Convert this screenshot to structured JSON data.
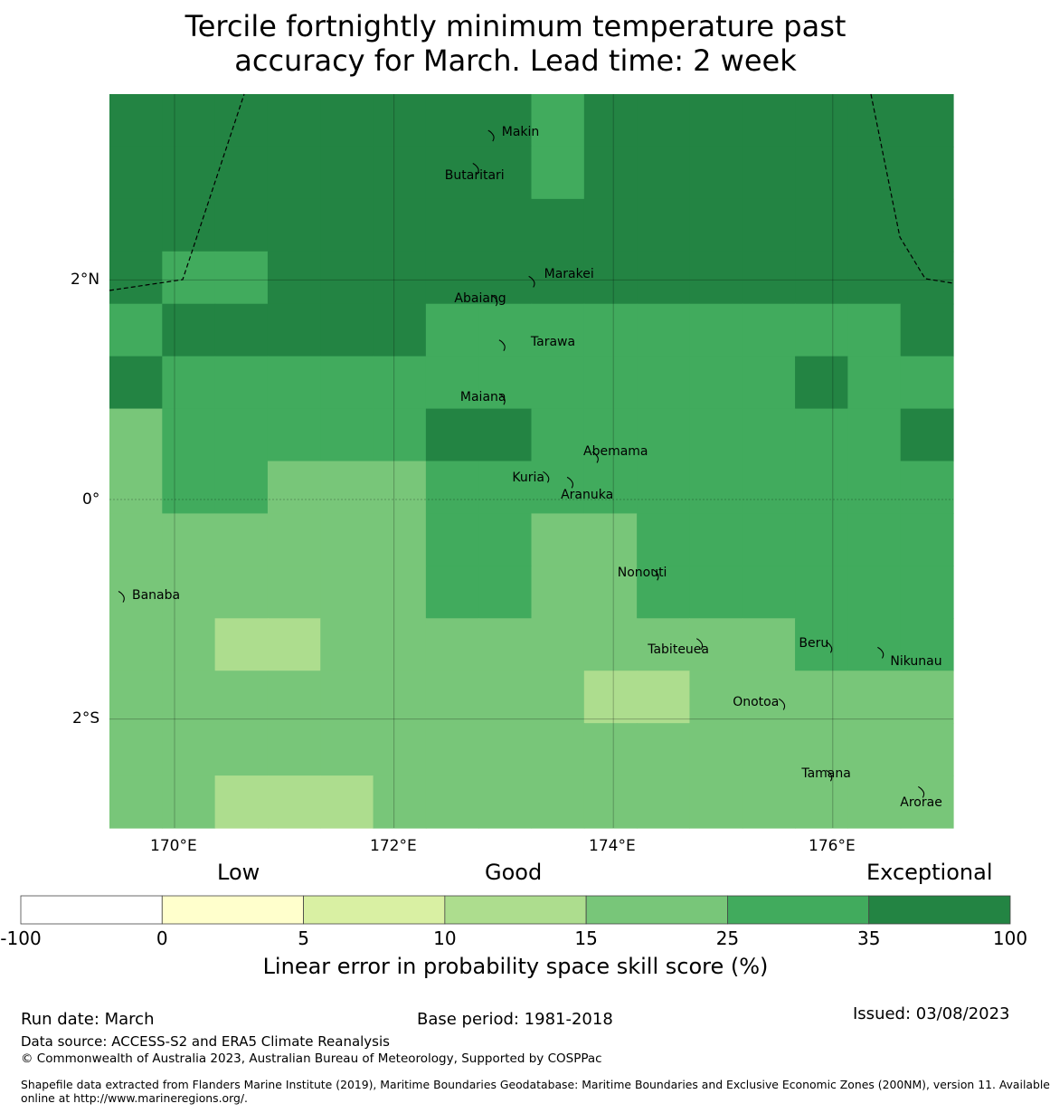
{
  "title_line1": "Tercile fortnightly minimum temperature past",
  "title_line2": "accuracy for March. Lead time: 2 week",
  "map": {
    "lon_labels": [
      "170°E",
      "172°E",
      "174°E",
      "176°E"
    ],
    "lat_labels": [
      "2°N",
      "0°",
      "2°S"
    ],
    "palette": [
      "#ffffff",
      "#ffffcc",
      "#d9f0a3",
      "#addd8e",
      "#78c679",
      "#41ab5d",
      "#238443"
    ],
    "grid": [
      [
        6,
        6,
        6,
        6,
        6,
        6,
        6,
        6,
        5,
        6,
        6,
        6,
        6,
        6,
        6,
        6
      ],
      [
        6,
        6,
        6,
        6,
        6,
        6,
        6,
        6,
        5,
        6,
        6,
        6,
        6,
        6,
        6,
        6
      ],
      [
        6,
        6,
        6,
        6,
        6,
        6,
        6,
        6,
        6,
        6,
        6,
        6,
        6,
        6,
        6,
        6
      ],
      [
        6,
        5,
        5,
        6,
        6,
        6,
        6,
        6,
        6,
        6,
        6,
        6,
        6,
        6,
        6,
        6
      ],
      [
        5,
        6,
        6,
        6,
        6,
        6,
        5,
        5,
        5,
        5,
        5,
        5,
        5,
        5,
        5,
        6
      ],
      [
        6,
        5,
        5,
        5,
        5,
        5,
        5,
        5,
        5,
        5,
        5,
        5,
        5,
        6,
        5,
        5
      ],
      [
        4,
        5,
        5,
        5,
        5,
        5,
        6,
        6,
        5,
        5,
        5,
        5,
        5,
        5,
        5,
        6
      ],
      [
        4,
        5,
        5,
        4,
        4,
        4,
        5,
        5,
        5,
        5,
        5,
        5,
        5,
        5,
        5,
        5
      ],
      [
        4,
        4,
        4,
        4,
        4,
        4,
        5,
        5,
        4,
        4,
        5,
        5,
        5,
        5,
        5,
        5
      ],
      [
        4,
        4,
        4,
        4,
        4,
        4,
        5,
        5,
        4,
        4,
        5,
        5,
        5,
        5,
        5,
        5
      ],
      [
        4,
        4,
        3,
        3,
        4,
        4,
        4,
        4,
        4,
        4,
        4,
        4,
        4,
        5,
        5,
        5
      ],
      [
        4,
        4,
        4,
        4,
        4,
        4,
        4,
        4,
        4,
        3,
        3,
        4,
        4,
        4,
        4,
        4
      ],
      [
        4,
        4,
        4,
        4,
        4,
        4,
        4,
        4,
        4,
        4,
        4,
        4,
        4,
        4,
        4,
        4
      ],
      [
        4,
        4,
        3,
        3,
        3,
        4,
        4,
        4,
        4,
        4,
        4,
        4,
        4,
        4,
        4,
        4
      ]
    ],
    "islands": [
      {
        "name": "Makin",
        "lon": 172.9,
        "lat": 3.33
      },
      {
        "name": "Butaritari",
        "lon": 172.76,
        "lat": 3.03
      },
      {
        "name": "Marakei",
        "lon": 173.27,
        "lat": 2.0
      },
      {
        "name": "Abaiang",
        "lon": 172.93,
        "lat": 1.83
      },
      {
        "name": "Tarawa",
        "lon": 173.0,
        "lat": 1.42
      },
      {
        "name": "Maiana",
        "lon": 173.0,
        "lat": 0.93
      },
      {
        "name": "Abemama",
        "lon": 173.85,
        "lat": 0.4
      },
      {
        "name": "Kuria",
        "lon": 173.4,
        "lat": 0.22
      },
      {
        "name": "Aranuka",
        "lon": 173.62,
        "lat": 0.17
      },
      {
        "name": "Nonouti",
        "lon": 174.4,
        "lat": -0.67
      },
      {
        "name": "Banaba",
        "lon": 169.53,
        "lat": -0.87
      },
      {
        "name": "Tabiteuea",
        "lon": 174.8,
        "lat": -1.3
      },
      {
        "name": "Beru",
        "lon": 175.98,
        "lat": -1.33
      },
      {
        "name": "Nikunau",
        "lon": 176.45,
        "lat": -1.38
      },
      {
        "name": "Onotoa",
        "lon": 175.55,
        "lat": -1.85
      },
      {
        "name": "Tamana",
        "lon": 175.98,
        "lat": -2.5
      },
      {
        "name": "Arorae",
        "lon": 176.82,
        "lat": -2.65
      }
    ]
  },
  "colorbar": {
    "category_labels": [
      "Low",
      "Good",
      "Exceptional"
    ],
    "ticks": [
      "-100",
      "0",
      "5",
      "10",
      "15",
      "25",
      "35",
      "100"
    ],
    "colors": [
      "#ffffff",
      "#ffffcc",
      "#d9f0a3",
      "#addd8e",
      "#78c679",
      "#41ab5d",
      "#238443"
    ],
    "label": "Linear error in probability space skill score (%)"
  },
  "footer": {
    "run_date": "Run date: March",
    "base_period": "Base period: 1981-2018",
    "issued": "Issued: 03/08/2023",
    "data_source": "Data source: ACCESS-S2 and ERA5 Climate Reanalysis",
    "copyright": "© Commonwealth of Australia 2023, Australian Bureau of Meteorology, Supported by COSPPac",
    "shapefile_line1": "Shapefile data extracted from Flanders Marine Institute (2019), Maritime Boundaries Geodatabase: Maritime Boundaries and Exclusive Economic Zones (200NM), version 11. Available",
    "shapefile_line2": "online at http://www.marineregions.org/."
  }
}
